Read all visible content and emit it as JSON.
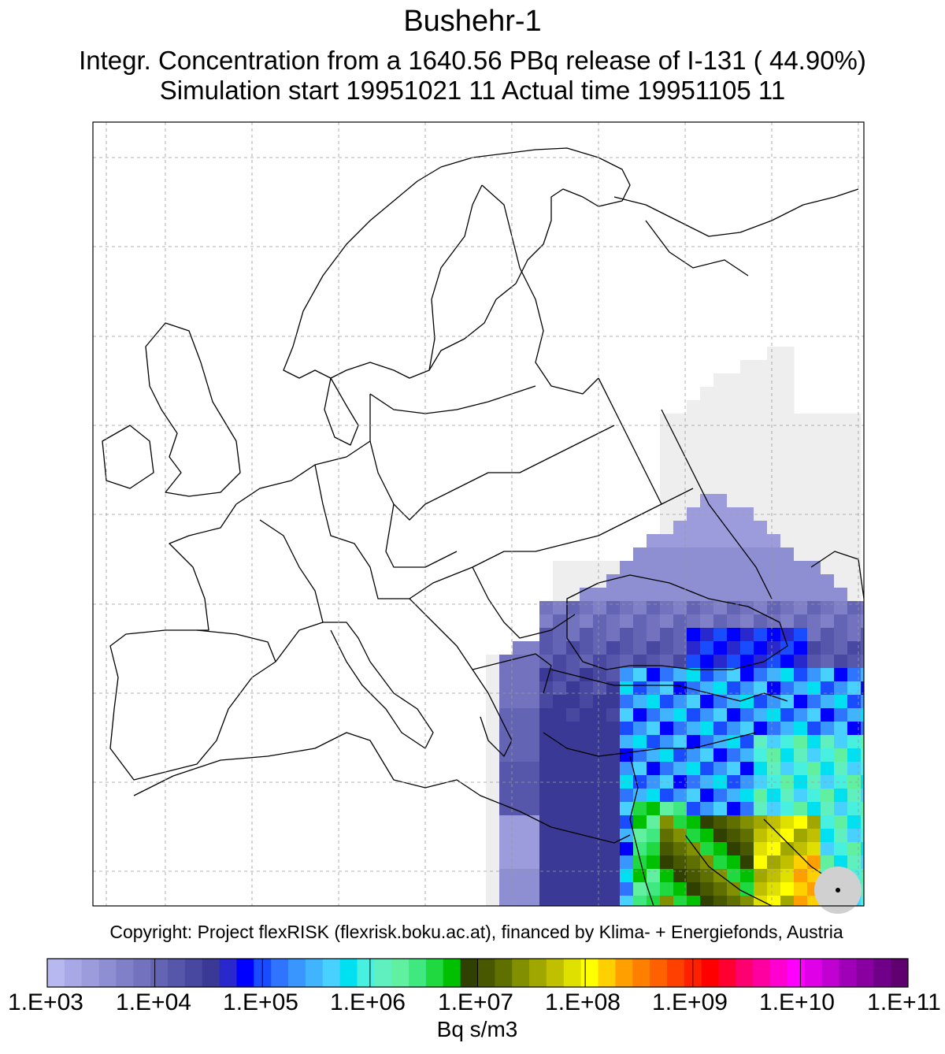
{
  "title": "Bushehr-1",
  "subtitle": "Integr. Concentration from a 1640.56 PBq release of I-131 ( 44.90%)",
  "simulation_line": "Simulation start 19951021 11    Actual time  19951105 11",
  "copyright": "Copyright: Project flexRISK (flexrisk.boku.ac.at), financed by Klima- + Energiefonds, Austria",
  "colorbar": {
    "tick_labels": [
      "1.E+03",
      "1.E+04",
      "1.E+05",
      "1.E+06",
      "1.E+07",
      "1.E+08",
      "1.E+09",
      "1.E+10",
      "1.E+11"
    ],
    "units": "Bq s/m3",
    "colors": [
      "#b8b8f0",
      "#a8a8e6",
      "#9c9cdc",
      "#8e8ed2",
      "#8080c8",
      "#7272be",
      "#6464b4",
      "#5656aa",
      "#4848a0",
      "#3a3a96",
      "#2828cc",
      "#0000ff",
      "#1a4cff",
      "#2e74ff",
      "#3a96ff",
      "#40b4ff",
      "#48d0ff",
      "#00e0f0",
      "#48f0e0",
      "#60f0c0",
      "#60f0a0",
      "#40e880",
      "#20d840",
      "#00c000",
      "#304000",
      "#485800",
      "#607000",
      "#809000",
      "#a0a800",
      "#c0c000",
      "#e0e000",
      "#ffff00",
      "#ffd000",
      "#ffa000",
      "#ff8000",
      "#ff6000",
      "#ff4000",
      "#ff2000",
      "#ff0000",
      "#ff0030",
      "#ff0070",
      "#ff00a0",
      "#ff00d0",
      "#ff00ff",
      "#e000e8",
      "#c000d0",
      "#a000b8",
      "#8800a0",
      "#700088",
      "#600070"
    ]
  },
  "map": {
    "background": "#ffffff",
    "grid": true,
    "release_site": "Bushehr"
  }
}
